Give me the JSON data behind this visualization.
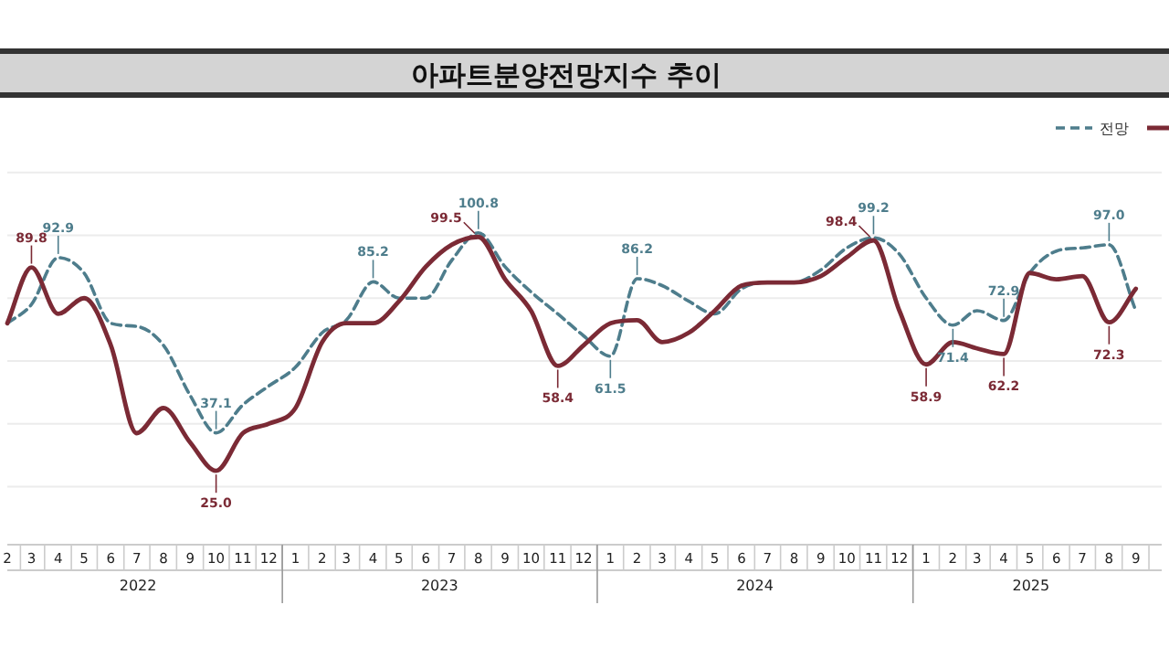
{
  "chart_data": {
    "type": "line",
    "title": "아파트분양전망지수  추이",
    "x": [
      "2022-02",
      "2022-03",
      "2022-04",
      "2022-05",
      "2022-06",
      "2022-07",
      "2022-08",
      "2022-09",
      "2022-10",
      "2022-11",
      "2022-12",
      "2023-01",
      "2023-02",
      "2023-03",
      "2023-04",
      "2023-05",
      "2023-06",
      "2023-07",
      "2023-08",
      "2023-09",
      "2023-10",
      "2023-11",
      "2023-12",
      "2024-01",
      "2024-02",
      "2024-03",
      "2024-04",
      "2024-05",
      "2024-06",
      "2024-07",
      "2024-08",
      "2024-09",
      "2024-10",
      "2024-11",
      "2024-12",
      "2025-01",
      "2025-02",
      "2025-03",
      "2025-04",
      "2025-05",
      "2025-06",
      "2025-07",
      "2025-08",
      "2025-09"
    ],
    "xlim": [
      "2022-02",
      "2025-10"
    ],
    "xticks": [
      {
        "value": "2022-02",
        "label": "2"
      },
      {
        "value": "2022-03",
        "label": "3"
      },
      {
        "value": "2022-04",
        "label": "4"
      },
      {
        "value": "2022-05",
        "label": "5"
      },
      {
        "value": "2022-06",
        "label": "6"
      },
      {
        "value": "2022-07",
        "label": "7"
      },
      {
        "value": "2022-08",
        "label": "8"
      },
      {
        "value": "2022-09",
        "label": "9"
      },
      {
        "value": "2022-10",
        "label": "10"
      },
      {
        "value": "2022-11",
        "label": "11"
      },
      {
        "value": "2022-12",
        "label": "12"
      },
      {
        "value": "2023-01",
        "label": "1"
      },
      {
        "value": "2023-02",
        "label": "2"
      },
      {
        "value": "2023-03",
        "label": "3"
      },
      {
        "value": "2023-04",
        "label": "4"
      },
      {
        "value": "2023-05",
        "label": "5"
      },
      {
        "value": "2023-06",
        "label": "6"
      },
      {
        "value": "2023-07",
        "label": "7"
      },
      {
        "value": "2023-08",
        "label": "8"
      },
      {
        "value": "2023-09",
        "label": "9"
      },
      {
        "value": "2023-10",
        "label": "10"
      },
      {
        "value": "2023-11",
        "label": "11"
      },
      {
        "value": "2023-12",
        "label": "12"
      },
      {
        "value": "2024-01",
        "label": "1"
      },
      {
        "value": "2024-02",
        "label": "2"
      },
      {
        "value": "2024-03",
        "label": "3"
      },
      {
        "value": "2024-04",
        "label": "4"
      },
      {
        "value": "2024-05",
        "label": "5"
      },
      {
        "value": "2024-06",
        "label": "6"
      },
      {
        "value": "2024-07",
        "label": "7"
      },
      {
        "value": "2024-08",
        "label": "8"
      },
      {
        "value": "2024-09",
        "label": "9"
      },
      {
        "value": "2024-10",
        "label": "10"
      },
      {
        "value": "2024-11",
        "label": "11"
      },
      {
        "value": "2024-12",
        "label": "12"
      },
      {
        "value": "2025-01",
        "label": "1"
      },
      {
        "value": "2025-02",
        "label": "2"
      },
      {
        "value": "2025-03",
        "label": "3"
      },
      {
        "value": "2025-04",
        "label": "4"
      },
      {
        "value": "2025-05",
        "label": "5"
      },
      {
        "value": "2025-06",
        "label": "6"
      },
      {
        "value": "2025-07",
        "label": "7"
      },
      {
        "value": "2025-08",
        "label": "8"
      },
      {
        "value": "2025-09",
        "label": "9"
      }
    ],
    "ylim": [
      20,
      120
    ],
    "yticks": [
      {
        "value": 20,
        "label": null
      },
      {
        "value": 40,
        "label": null
      },
      {
        "value": 60,
        "label": null
      },
      {
        "value": 80,
        "label": null
      },
      {
        "value": 100,
        "label": null
      },
      {
        "value": 120,
        "label": null
      }
    ],
    "grid": "y",
    "legend": "top right",
    "annotations": [
      "2022",
      "2023",
      "2024",
      "2025"
    ],
    "series": [
      {
        "name": "전망",
        "color": "#4e7d8c",
        "line_style": "dashed",
        "values": [
          72,
          78,
          92.9,
          88,
          72,
          71,
          65,
          49,
          37.1,
          46,
          52,
          58,
          69,
          73,
          85.2,
          80,
          80,
          92,
          100.8,
          90,
          82,
          75,
          68,
          61.5,
          86.2,
          84,
          79,
          75,
          83,
          85,
          85,
          89,
          96,
          99.2,
          94,
          80,
          71.4,
          76,
          72.9,
          88,
          95,
          96,
          97.0,
          76
        ],
        "value_labels": [
          null,
          null,
          "92.9",
          null,
          null,
          null,
          null,
          null,
          "37.1",
          null,
          null,
          null,
          null,
          null,
          "85.2",
          null,
          null,
          null,
          "100.8",
          null,
          null,
          null,
          null,
          "61.5",
          "86.2",
          null,
          null,
          null,
          null,
          null,
          null,
          null,
          null,
          "99.2",
          null,
          null,
          "71.4",
          null,
          "72.9",
          null,
          null,
          null,
          "97.0",
          null
        ]
      },
      {
        "color": "#7b2a35",
        "line_style": "solid",
        "values": [
          72,
          89.8,
          75,
          80,
          65,
          37,
          45,
          34,
          25.0,
          37,
          40,
          45,
          66,
          72,
          72,
          79,
          90,
          97,
          99.5,
          86,
          76,
          58.4,
          65,
          72,
          73,
          66,
          69,
          76,
          84,
          85,
          85,
          87,
          93,
          98.4,
          76,
          58.9,
          66,
          64,
          62.2,
          88,
          86,
          87,
          72.3,
          83
        ],
        "value_labels": [
          null,
          "89.8",
          null,
          null,
          null,
          null,
          null,
          null,
          "25.0",
          null,
          null,
          null,
          null,
          null,
          null,
          null,
          null,
          null,
          "99.5",
          null,
          null,
          "58.4",
          null,
          null,
          null,
          null,
          null,
          null,
          null,
          null,
          null,
          null,
          null,
          "98.4",
          null,
          "58.9",
          null,
          null,
          "62.2",
          null,
          null,
          null,
          "72.3",
          null
        ]
      }
    ]
  }
}
